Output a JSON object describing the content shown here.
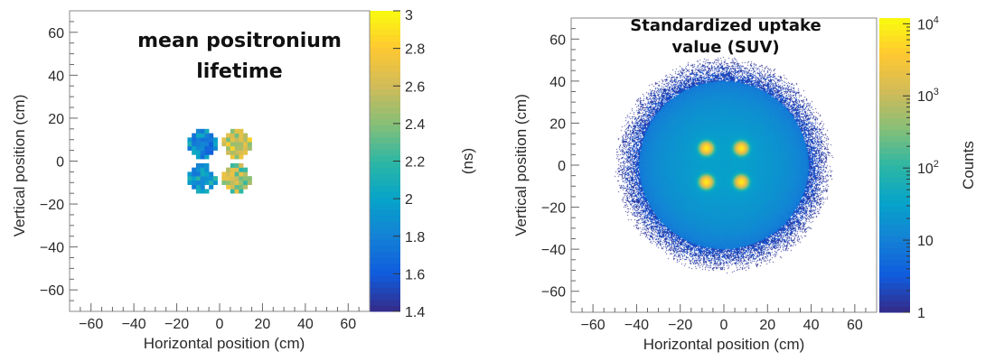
{
  "colors": {
    "colormap": [
      "#352a87",
      "#0f5cdd",
      "#1481d6",
      "#06a4ca",
      "#2eb7a4",
      "#87bf77",
      "#d1bb59",
      "#fec832",
      "#f9fb0e"
    ],
    "frame": "#888888",
    "background": "#ffffff"
  },
  "chart_data": [
    {
      "type": "heatmap",
      "title_lines": [
        "mean positronium",
        "lifetime"
      ],
      "xlabel": "Horizontal position (cm)",
      "ylabel": "Vertical position (cm)",
      "zlabel": "(ns)",
      "xlim": [
        -70,
        70
      ],
      "ylim": [
        -70,
        70
      ],
      "zlim": [
        1.4,
        3.0
      ],
      "zscale": "linear",
      "bin_size_cm": 2,
      "xticks": [
        "-60",
        "-40",
        "-20",
        "0",
        "20",
        "40",
        "60"
      ],
      "xtick_values": [
        -60,
        -40,
        -20,
        0,
        20,
        40,
        60
      ],
      "yticks": [
        "60",
        "40",
        "20",
        "0",
        "-20",
        "-40",
        "-60"
      ],
      "ytick_values": [
        60,
        40,
        20,
        0,
        -20,
        -40,
        -60
      ],
      "zticks": [
        "3",
        "2.8",
        "2.6",
        "2.4",
        "2.2",
        "2",
        "1.8",
        "1.6",
        "1.4"
      ],
      "ztick_values": [
        3,
        2.8,
        2.6,
        2.4,
        2.2,
        2,
        1.8,
        1.6,
        1.4
      ],
      "regions": [
        {
          "center": [
            -8,
            8
          ],
          "mean_ns": 1.85,
          "spread_ns": 0.25
        },
        {
          "center": [
            8,
            8
          ],
          "mean_ns": 2.6,
          "spread_ns": 0.25
        },
        {
          "center": [
            -8,
            -8
          ],
          "mean_ns": 1.95,
          "spread_ns": 0.25
        },
        {
          "center": [
            8,
            -8
          ],
          "mean_ns": 2.45,
          "spread_ns": 0.3
        }
      ],
      "grid": false
    },
    {
      "type": "heatmap",
      "title_lines": [
        "Standardized uptake",
        "value (SUV)"
      ],
      "xlabel": "Horizontal position (cm)",
      "ylabel": "Vertical position (cm)",
      "zlabel": "Counts",
      "xlim": [
        -70,
        70
      ],
      "ylim": [
        -70,
        70
      ],
      "zlim": [
        1,
        12000
      ],
      "zscale": "log",
      "xticks": [
        "-60",
        "-40",
        "-20",
        "0",
        "20",
        "40",
        "60"
      ],
      "xtick_values": [
        -60,
        -40,
        -20,
        0,
        20,
        40,
        60
      ],
      "yticks": [
        "60",
        "40",
        "20",
        "0",
        "-20",
        "-40",
        "-60"
      ],
      "ytick_values": [
        60,
        40,
        20,
        0,
        -20,
        -40,
        -60
      ],
      "zticks": [
        {
          "base": "10",
          "exp": "4",
          "value": 10000
        },
        {
          "base": "10",
          "exp": "3",
          "value": 1000
        },
        {
          "base": "10",
          "exp": "2",
          "value": 100
        },
        {
          "base": "10",
          "exp": "",
          "value": 10
        },
        {
          "base": "1",
          "exp": "",
          "value": 1
        }
      ],
      "phantom_radius_cm": 50,
      "background_counts": 25,
      "hot_spots": [
        {
          "center": [
            -8,
            8
          ],
          "peak_counts": 8000
        },
        {
          "center": [
            8,
            8
          ],
          "peak_counts": 8000
        },
        {
          "center": [
            -8,
            -8
          ],
          "peak_counts": 8000
        },
        {
          "center": [
            8,
            -8
          ],
          "peak_counts": 8000
        }
      ],
      "grid": false
    }
  ]
}
